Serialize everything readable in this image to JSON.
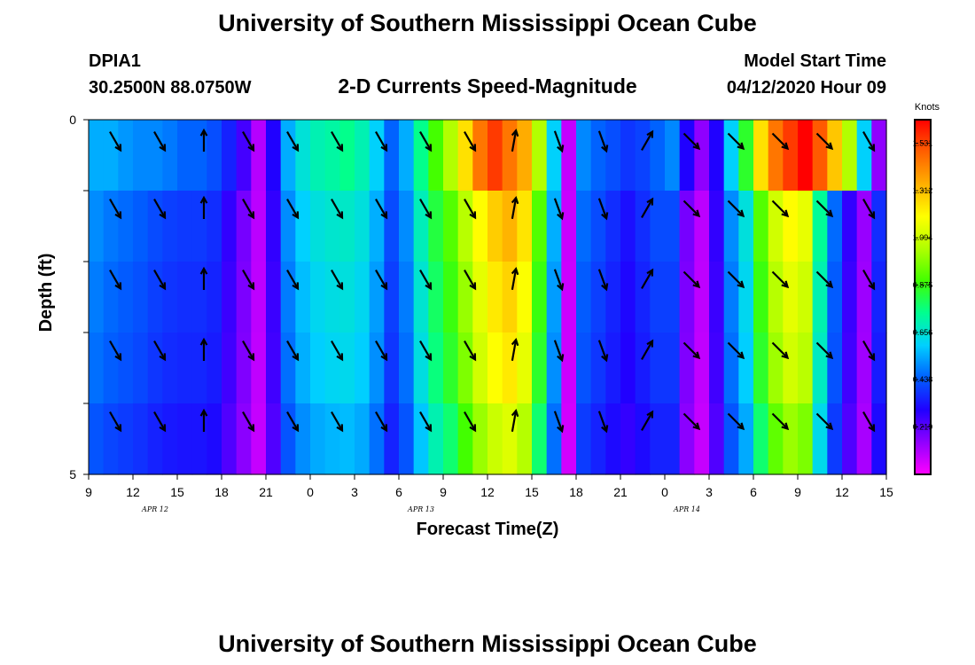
{
  "header": {
    "title": "University of Southern Mississippi Ocean Cube",
    "station_id": "DPIA1",
    "coords": "30.2500N 88.0750W",
    "subtitle": "2-D Currents Speed-Magnitude",
    "model_label": "Model Start Time",
    "model_time": "04/12/2020 Hour 09"
  },
  "footer": {
    "title": "University of Southern Mississippi Ocean Cube"
  },
  "chart_data": {
    "type": "heatmap",
    "xlabel": "Forecast Time(Z)",
    "ylabel": "Depth (ft)",
    "x_ticks": [
      "9",
      "12",
      "15",
      "18",
      "21",
      "0",
      "3",
      "6",
      "9",
      "12",
      "15",
      "18",
      "21",
      "0",
      "3",
      "6",
      "9",
      "12",
      "15"
    ],
    "date_labels": [
      "APR 12",
      "APR 13",
      "APR 14"
    ],
    "y_ticks": [
      "0",
      "5"
    ],
    "ylim": [
      0,
      5
    ],
    "colorbar": {
      "unit": "Knots",
      "ticks": [
        "1.531",
        "1.312",
        "1.094",
        "0.875",
        "0.656",
        "0.438",
        "0.219"
      ],
      "min": 0.0,
      "max": 1.64,
      "colors": [
        "#ff00ff",
        "#9000ff",
        "#2000ff",
        "#0060ff",
        "#00d0ff",
        "#00ff90",
        "#40ff00",
        "#b0ff00",
        "#ffff00",
        "#ffb000",
        "#ff6000",
        "#ff0000"
      ]
    },
    "hours": [
      0,
      1,
      2,
      3,
      4,
      5,
      6,
      7,
      8,
      9,
      10,
      11,
      12,
      13,
      14,
      15,
      16,
      17,
      18,
      19,
      20,
      21,
      22,
      23,
      24,
      25,
      26,
      27,
      28,
      29,
      30,
      31,
      32,
      33,
      34,
      35,
      36,
      37,
      38,
      39,
      40,
      41,
      42,
      43,
      44,
      45,
      46,
      47,
      48,
      49,
      50,
      51,
      52,
      53,
      54
    ],
    "depth_layers": [
      0.5,
      1.5,
      2.5,
      3.5,
      4.5
    ],
    "speed_profile": [
      0.55,
      0.52,
      0.5,
      0.48,
      0.45,
      0.43,
      0.42,
      0.42,
      0.4,
      0.3,
      0.2,
      0.1,
      0.3,
      0.55,
      0.65,
      0.7,
      0.72,
      0.73,
      0.7,
      0.6,
      0.45,
      0.55,
      0.75,
      0.9,
      1.0,
      1.15,
      1.3,
      1.4,
      1.45,
      1.35,
      1.0,
      0.6,
      0.08,
      0.5,
      0.45,
      0.4,
      0.35,
      0.4,
      0.45,
      0.45,
      0.2,
      0.1,
      0.3,
      0.55,
      0.7,
      1.0,
      1.2,
      1.3,
      1.25,
      0.8,
      0.5,
      0.3,
      0.15,
      0.4,
      0.45
    ],
    "surface_speed": [
      0.55,
      0.55,
      0.52,
      0.5,
      0.5,
      0.48,
      0.45,
      0.45,
      0.42,
      0.35,
      0.25,
      0.1,
      0.3,
      0.55,
      0.65,
      0.7,
      0.72,
      0.75,
      0.7,
      0.6,
      0.45,
      0.55,
      0.75,
      0.9,
      1.05,
      1.25,
      1.45,
      1.55,
      1.45,
      1.35,
      1.05,
      0.6,
      0.08,
      0.5,
      0.45,
      0.42,
      0.38,
      0.4,
      0.45,
      0.5,
      0.3,
      0.15,
      0.3,
      0.6,
      0.85,
      1.25,
      1.45,
      1.55,
      1.64,
      1.5,
      1.3,
      1.05,
      0.6,
      0.15,
      0.45
    ],
    "depth_factors": [
      0.92,
      0.88,
      0.85,
      0.78
    ],
    "arrow_hours": [
      3,
      6,
      9,
      12,
      15,
      18,
      21,
      24,
      27,
      30,
      33,
      36,
      39,
      42,
      45,
      48,
      51,
      54
    ],
    "arrow_directions_deg": [
      150,
      150,
      0,
      150,
      150,
      150,
      150,
      150,
      150,
      10,
      160,
      160,
      30,
      135,
      135,
      135,
      135,
      150
    ],
    "arrow_layer_rows": [
      0.85,
      1.8,
      2.8,
      3.8,
      4.8
    ]
  }
}
